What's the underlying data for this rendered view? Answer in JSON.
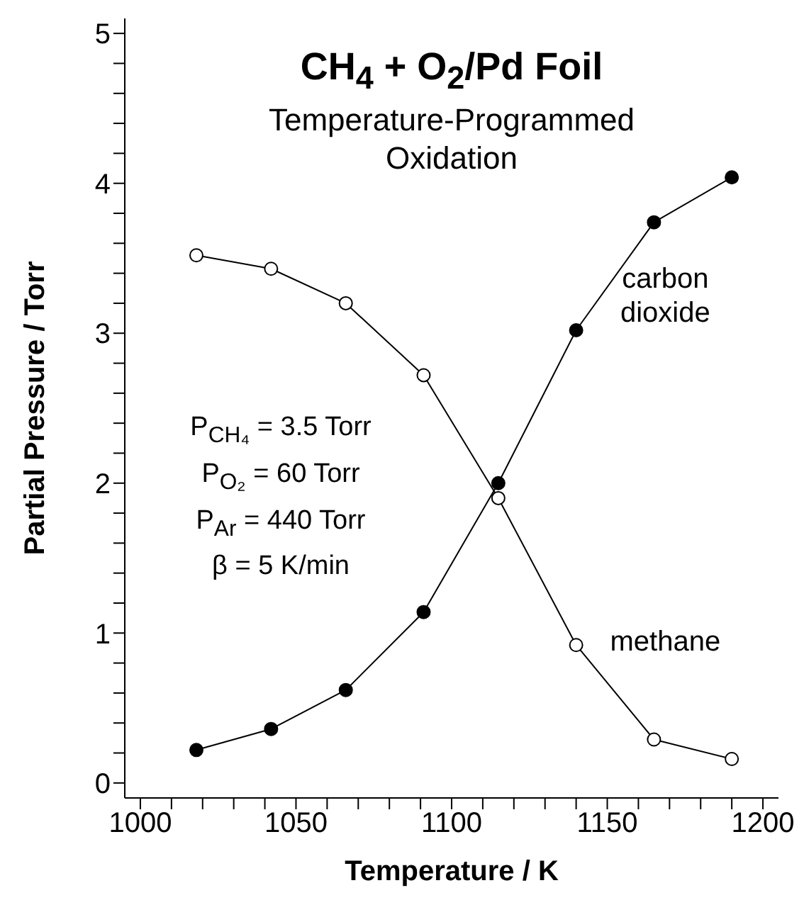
{
  "chart_data": {
    "type": "line",
    "title": "CH$_{4}$ + O$_{2}$/Pd Foil",
    "subtitle": "Temperature-Programmed Oxidation",
    "xlabel": "Temperature / K",
    "ylabel": "Partial Pressure / Torr",
    "annotations": [
      "P$_{CH₄}$ = 3.5 Torr",
      "P$_{O₂}$ = 60 Torr",
      "P$_{Ar}$ = 440 Torr",
      "β = 5 K/min"
    ],
    "x": [
      1018,
      1042,
      1066,
      1091,
      1115,
      1140,
      1165,
      1190
    ],
    "series": [
      {
        "name": "carbon dioxide",
        "color": "#000000",
        "values": [
          0.22,
          0.36,
          0.62,
          1.14,
          2.0,
          3.02,
          3.74,
          4.04
        ]
      },
      {
        "name": "methane",
        "color": "#000000",
        "values": [
          3.52,
          3.43,
          3.2,
          2.72,
          1.9,
          0.92,
          0.29,
          0.16
        ]
      }
    ],
    "xlim": [
      995,
      1205
    ],
    "ylim": [
      -0.1,
      5.1
    ],
    "xticks": [
      1000,
      {
        "value": 1010,
        "label": null
      },
      {
        "value": 1020,
        "label": null
      },
      {
        "value": 1030,
        "label": null
      },
      {
        "value": 1040,
        "label": null
      },
      1050,
      {
        "value": 1060,
        "label": null
      },
      {
        "value": 1070,
        "label": null
      },
      {
        "value": 1080,
        "label": null
      },
      {
        "value": 1090,
        "label": null
      },
      1100,
      {
        "value": 1110,
        "label": null
      },
      {
        "value": 1120,
        "label": null
      },
      {
        "value": 1130,
        "label": null
      },
      {
        "value": 1140,
        "label": null
      },
      1150,
      {
        "value": 1160,
        "label": null
      },
      {
        "value": 1170,
        "label": null
      },
      {
        "value": 1180,
        "label": null
      },
      {
        "value": 1190,
        "label": null
      },
      1200
    ],
    "yticks": [
      0,
      {
        "value": 0.2,
        "label": null
      },
      {
        "value": 0.4,
        "label": null
      },
      {
        "value": 0.6,
        "label": null
      },
      {
        "value": 0.8,
        "label": null
      },
      1,
      {
        "value": 1.2,
        "label": null
      },
      {
        "value": 1.4,
        "label": null
      },
      {
        "value": 1.6,
        "label": null
      },
      {
        "value": 1.8,
        "label": null
      },
      2,
      {
        "value": 2.2,
        "label": null
      },
      {
        "value": 2.4,
        "label": null
      },
      {
        "value": 2.6,
        "label": null
      },
      {
        "value": 2.8,
        "label": null
      },
      3,
      {
        "value": 3.2,
        "label": null
      },
      {
        "value": 3.4,
        "label": null
      },
      {
        "value": 3.6,
        "label": null
      },
      {
        "value": 3.8,
        "label": null
      },
      4,
      {
        "value": 4.2,
        "label": null
      },
      {
        "value": 4.4,
        "label": null
      },
      {
        "value": 4.6,
        "label": null
      },
      {
        "value": 4.8,
        "label": null
      },
      5
    ],
    "grid": false,
    "marker": "circle",
    "line_style": "solid"
  }
}
